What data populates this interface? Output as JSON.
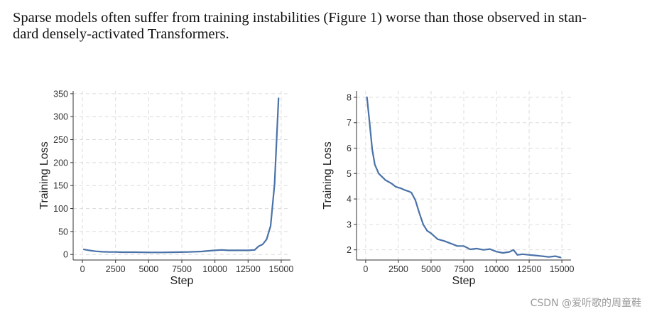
{
  "paragraph": {
    "line1": "Sparse models often suffer from training instabilities (Figure 1) worse than those observed in stan-",
    "line2": "dard densely-activated Transformers."
  },
  "watermark": "CSDN @爱听歌的周童鞋",
  "line_color": "#4a72a8",
  "chart_data": [
    {
      "type": "line",
      "xlabel": "Step",
      "ylabel": "Training Loss",
      "xlim": [
        -700,
        15700
      ],
      "ylim": [
        -12,
        356
      ],
      "xticks": [
        0,
        2500,
        5000,
        7500,
        10000,
        12500,
        15000
      ],
      "yticks": [
        0,
        50,
        100,
        150,
        200,
        250,
        300,
        350
      ],
      "grid": true,
      "series": [
        {
          "x": [
            100,
            500,
            1000,
            1500,
            2000,
            2500,
            3000,
            4000,
            5000,
            6000,
            7000,
            8000,
            9000,
            9500,
            10000,
            10500,
            11000,
            11500,
            12000,
            12500,
            13000,
            13300,
            13600,
            13900,
            14200,
            14500,
            14800
          ],
          "y": [
            11,
            9,
            7,
            6,
            5.5,
            5.5,
            5,
            5,
            4.5,
            4.5,
            5,
            5.5,
            6.5,
            8,
            9,
            10,
            9,
            9,
            9,
            9,
            10,
            18,
            22,
            33,
            62,
            153,
            340
          ]
        }
      ]
    },
    {
      "type": "line",
      "xlabel": "Step",
      "ylabel": "Training Loss",
      "xlim": [
        -700,
        15700
      ],
      "ylim": [
        1.6,
        8.25
      ],
      "xticks": [
        0,
        2500,
        5000,
        7500,
        10000,
        12500,
        15000
      ],
      "yticks": [
        2,
        3,
        4,
        5,
        6,
        7,
        8
      ],
      "grid": true,
      "series": [
        {
          "x": [
            100,
            300,
            500,
            700,
            1000,
            1500,
            2000,
            2300,
            2700,
            3000,
            3300,
            3500,
            3800,
            4100,
            4400,
            4700,
            5000,
            5500,
            6000,
            6500,
            7000,
            7500,
            8000,
            8500,
            9000,
            9500,
            10000,
            10500,
            11000,
            11300,
            11600,
            12000,
            12500,
            13000,
            13500,
            14000,
            14500,
            14900
          ],
          "y": [
            8.0,
            7.0,
            5.95,
            5.35,
            5.0,
            4.75,
            4.6,
            4.48,
            4.42,
            4.35,
            4.3,
            4.25,
            3.95,
            3.45,
            3.0,
            2.75,
            2.65,
            2.42,
            2.35,
            2.25,
            2.15,
            2.15,
            2.02,
            2.05,
            2.0,
            2.03,
            1.93,
            1.88,
            1.92,
            2.0,
            1.8,
            1.83,
            1.8,
            1.78,
            1.75,
            1.72,
            1.75,
            1.7
          ]
        }
      ]
    }
  ]
}
